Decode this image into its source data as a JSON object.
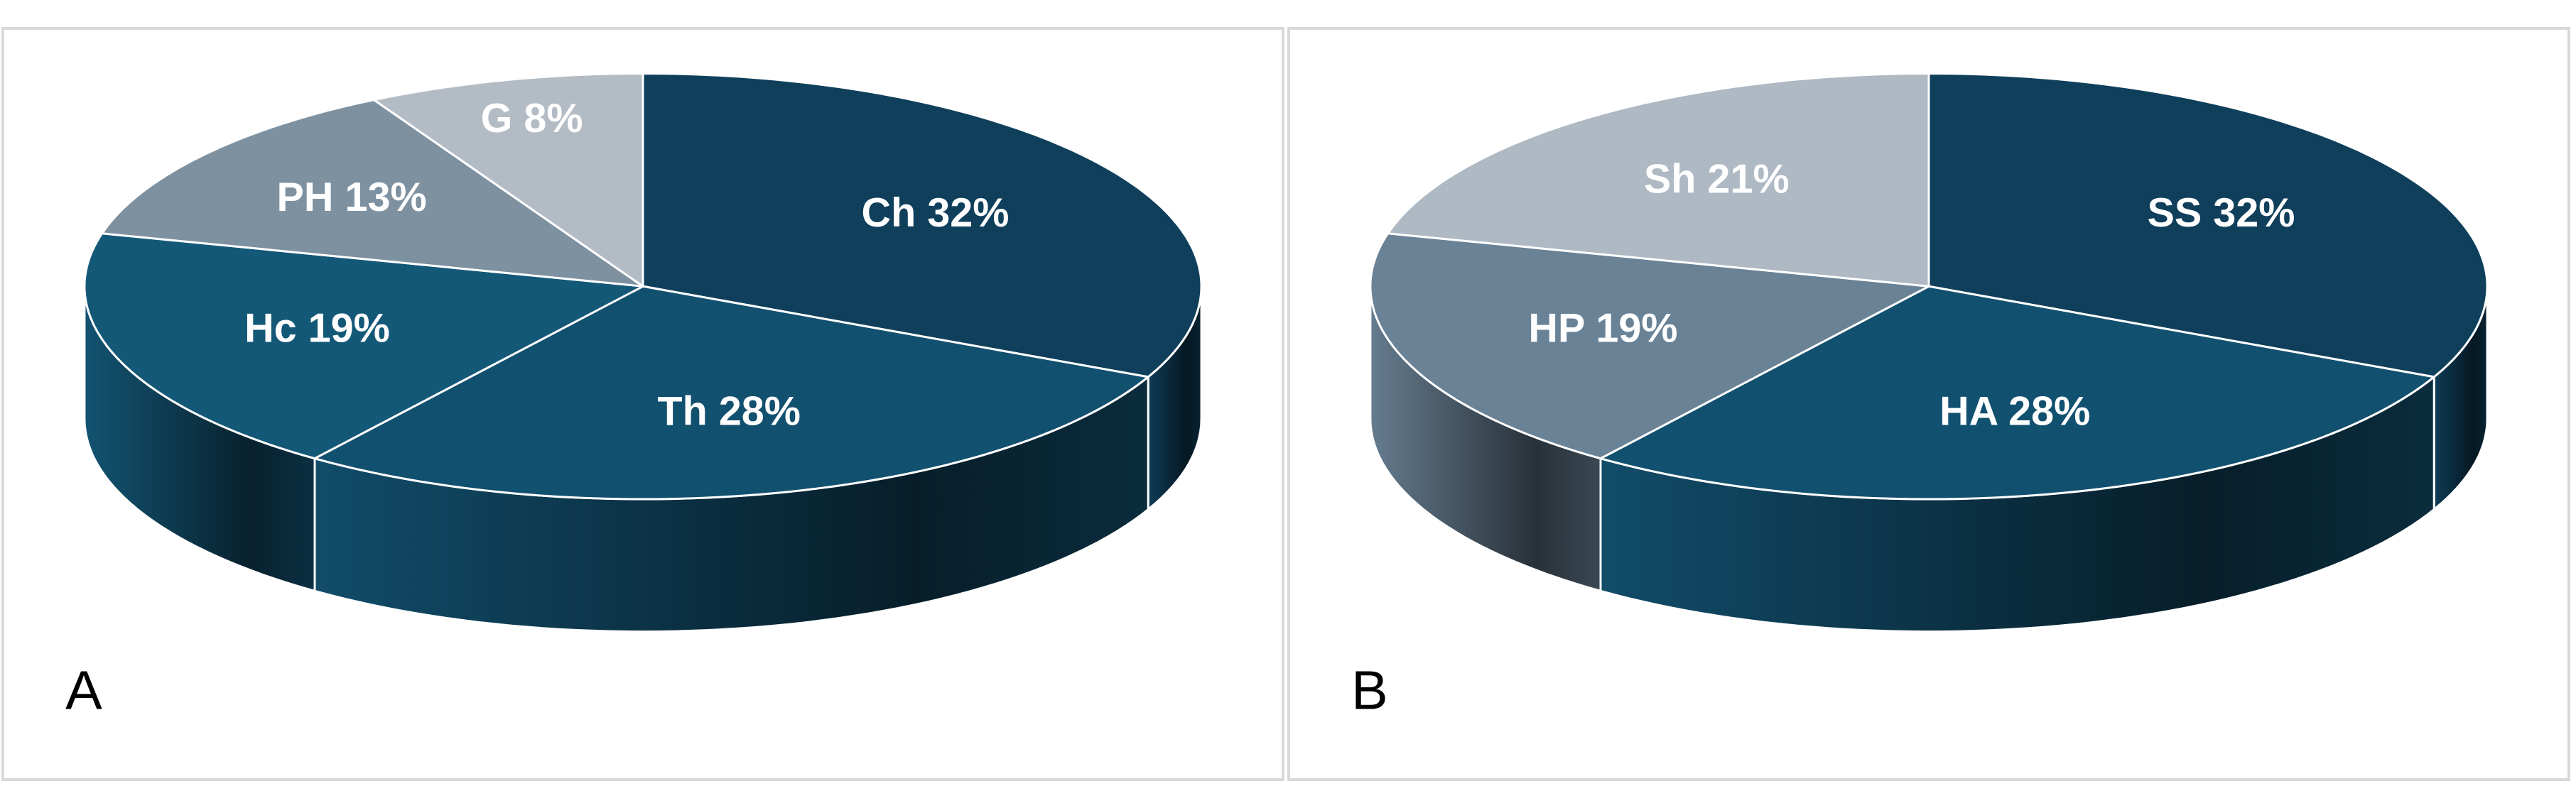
{
  "chart_data": [
    {
      "type": "pie",
      "panel_label": "A",
      "three_d": true,
      "labels": [
        "Ch",
        "Th",
        "Hc",
        "PH",
        "G"
      ],
      "values": [
        32,
        28,
        19,
        13,
        8
      ],
      "value_labels": [
        "32%",
        "28%",
        "19%",
        "13%",
        "8%"
      ],
      "colors": [
        "#0f3f5b",
        "#12506f",
        "#145878",
        "#7e91a0",
        "#b3bcc5"
      ]
    },
    {
      "type": "pie",
      "panel_label": "B",
      "three_d": true,
      "labels": [
        "SS",
        "HA",
        "HP",
        "Sh"
      ],
      "values": [
        32,
        28,
        19,
        21
      ],
      "value_labels": [
        "32%",
        "28%",
        "19%",
        "21%"
      ],
      "colors": [
        "#0f3f5b",
        "#12506f",
        "#6a8296",
        "#aeb9c3"
      ]
    }
  ]
}
